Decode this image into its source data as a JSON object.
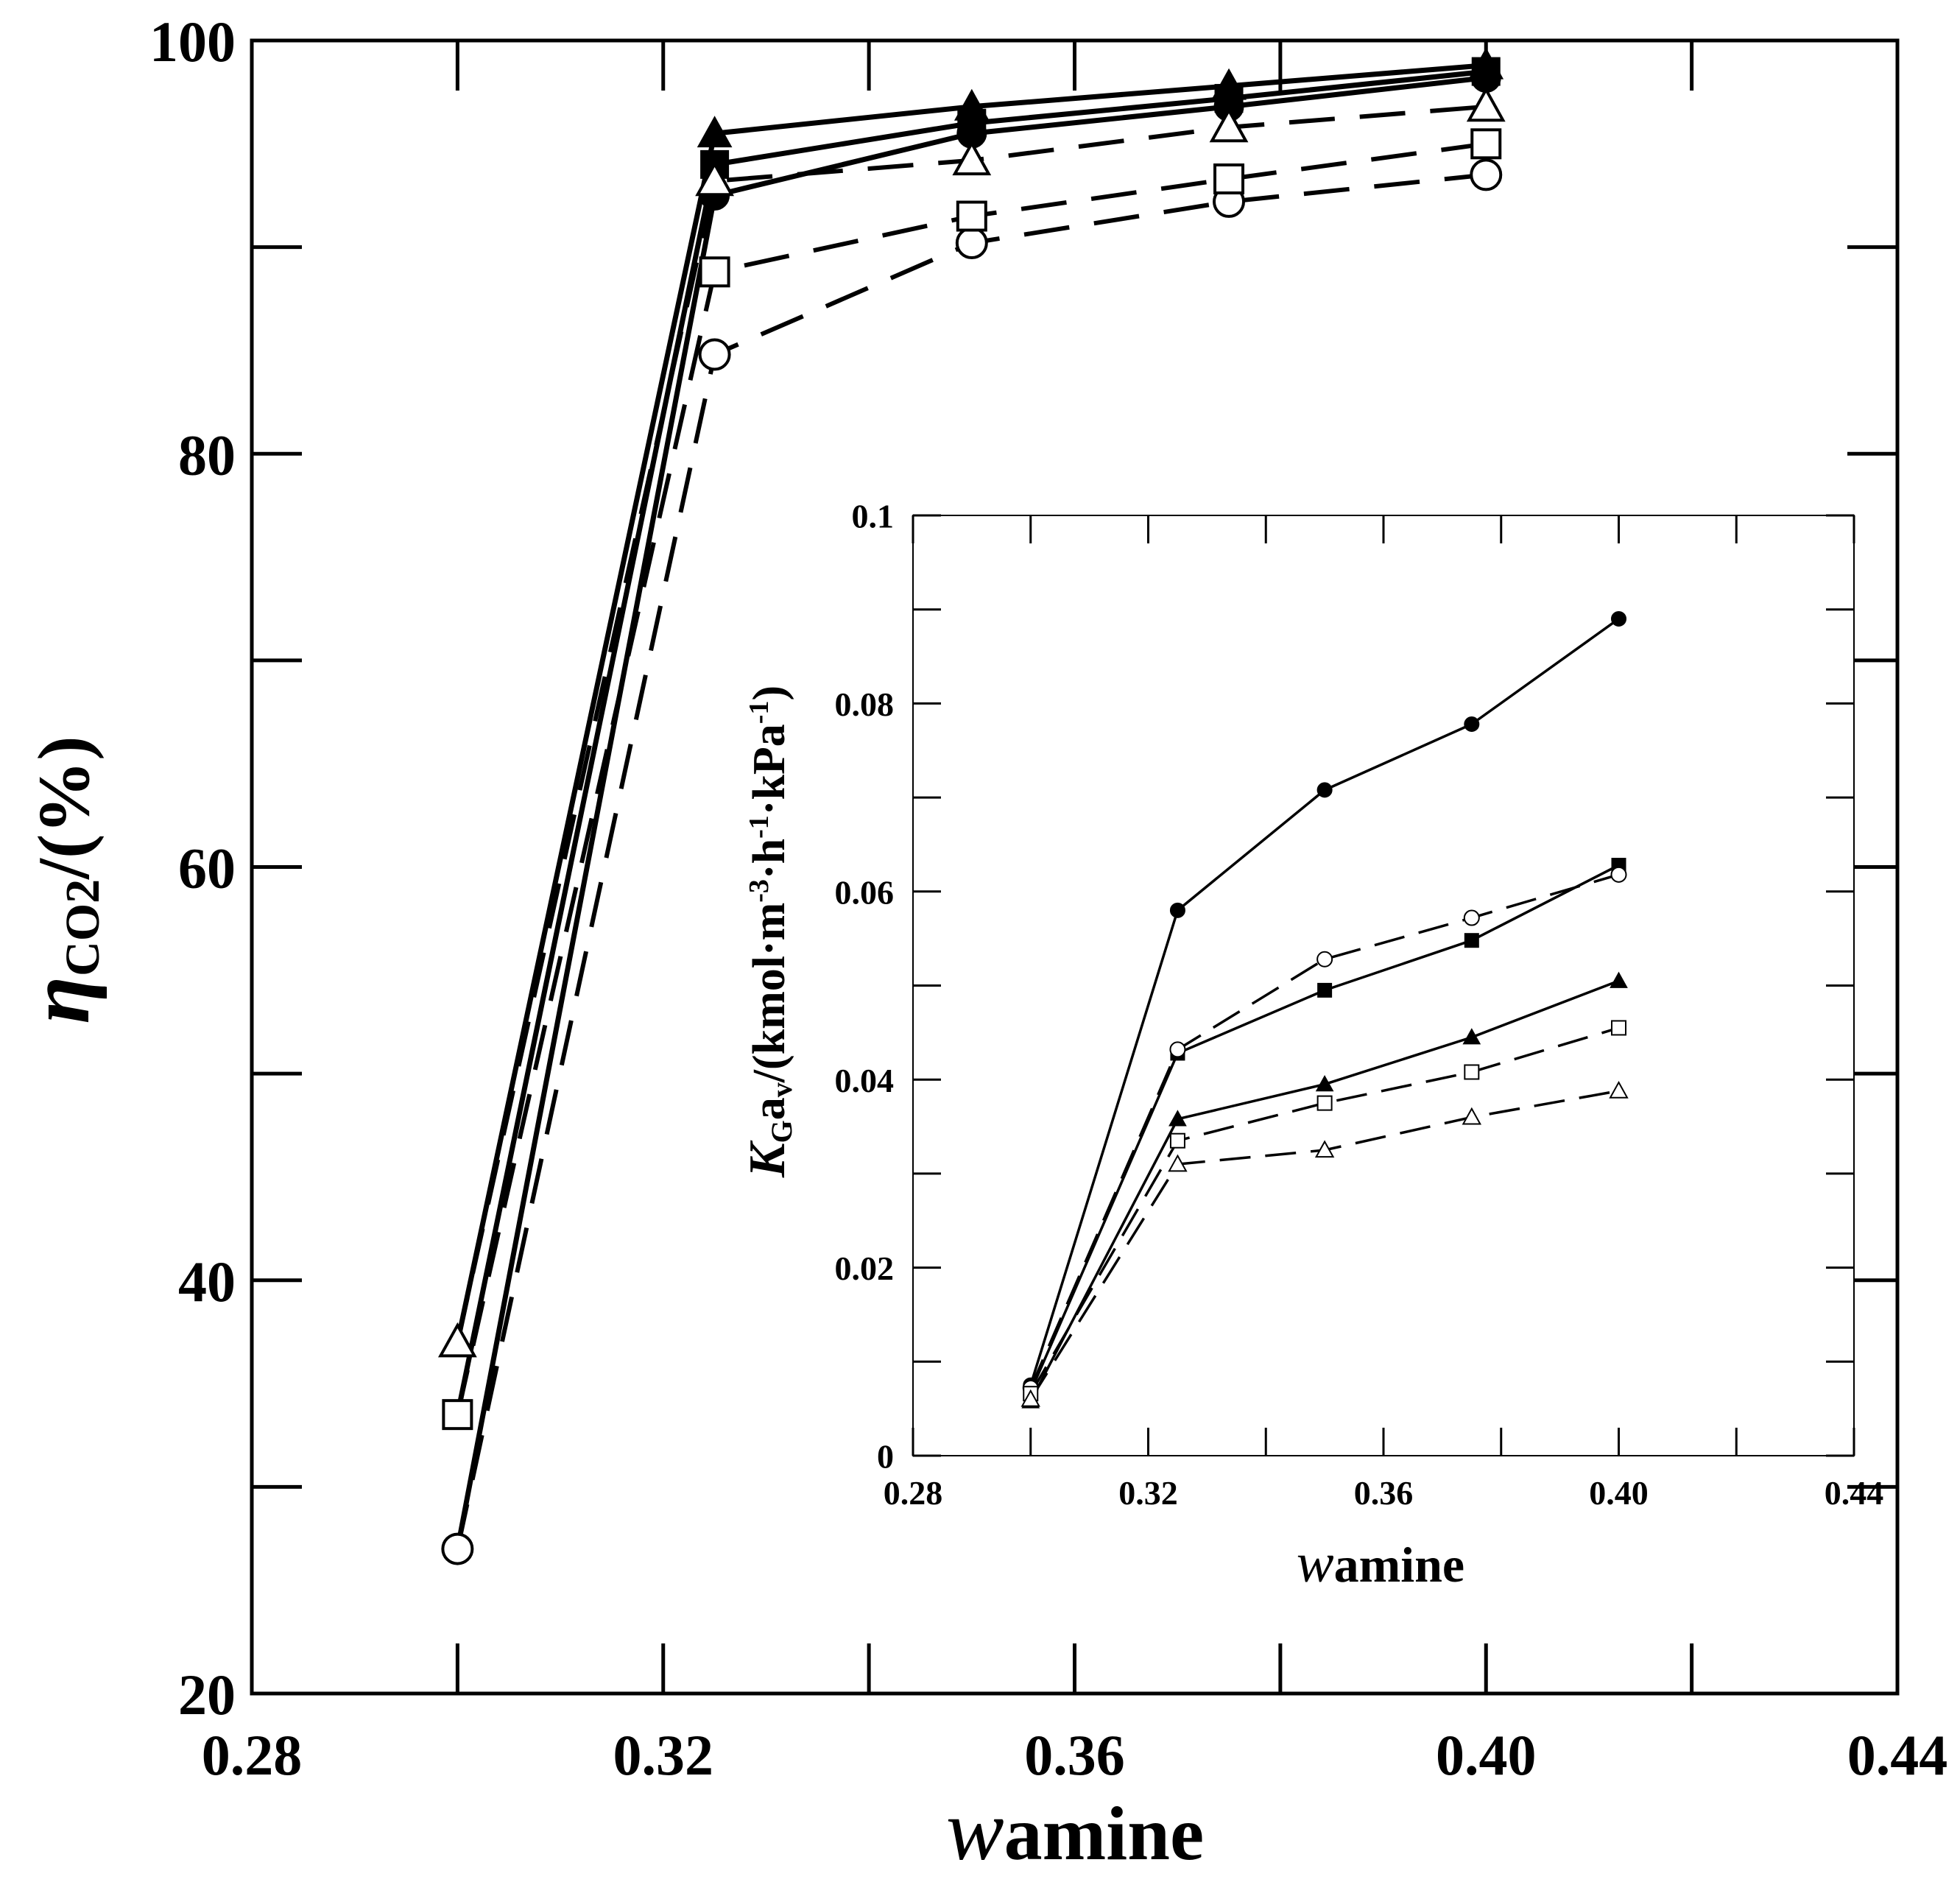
{
  "chart_data": [
    {
      "id": "main",
      "type": "line",
      "title": "",
      "xlabel": {
        "italic": "w",
        "sub": "amine"
      },
      "ylabel": {
        "italic": "η",
        "sub": "CO2",
        "suffix": "/(%)"
      },
      "xlim": [
        0.28,
        0.44
      ],
      "ylim": [
        20,
        100
      ],
      "xticks": [
        0.28,
        0.32,
        0.36,
        0.4,
        0.44
      ],
      "xtick_labels": [
        "0.28",
        "0.32",
        "0.36",
        "0.40",
        "0.44"
      ],
      "xminor": [
        0.3,
        0.34,
        0.38,
        0.42
      ],
      "yticks": [
        20,
        40,
        60,
        80,
        100
      ],
      "ytick_labels": [
        "20",
        "40",
        "60",
        "80",
        "100"
      ],
      "yminor": [
        30,
        50,
        70,
        90
      ],
      "series": [
        {
          "name": "filled-circle",
          "marker": "circle",
          "filled": true,
          "dashed": false,
          "x": [
            0.3,
            0.325,
            0.35,
            0.375,
            0.4
          ],
          "y": [
            27.0,
            92.5,
            95.5,
            96.8,
            98.2
          ]
        },
        {
          "name": "filled-square",
          "marker": "square",
          "filled": true,
          "dashed": false,
          "x": [
            0.3,
            0.325,
            0.35,
            0.375,
            0.4
          ],
          "y": [
            33.5,
            94.0,
            96.0,
            97.2,
            98.5
          ]
        },
        {
          "name": "filled-triangle",
          "marker": "triangle",
          "filled": true,
          "dashed": false,
          "x": [
            0.3,
            0.325,
            0.35,
            0.375,
            0.4
          ],
          "y": [
            37.0,
            95.5,
            96.8,
            97.8,
            98.8
          ]
        },
        {
          "name": "open-circle",
          "marker": "circle",
          "filled": false,
          "dashed": true,
          "x": [
            0.3,
            0.325,
            0.35,
            0.375,
            0.4
          ],
          "y": [
            27.0,
            84.8,
            90.2,
            92.2,
            93.5
          ]
        },
        {
          "name": "open-square",
          "marker": "square",
          "filled": false,
          "dashed": true,
          "x": [
            0.3,
            0.325,
            0.35,
            0.375,
            0.4
          ],
          "y": [
            33.5,
            88.8,
            91.5,
            93.3,
            95.0
          ]
        },
        {
          "name": "open-triangle",
          "marker": "triangle",
          "filled": false,
          "dashed": true,
          "x": [
            0.3,
            0.325,
            0.35,
            0.375,
            0.4
          ],
          "y": [
            37.0,
            93.2,
            94.2,
            95.8,
            96.8
          ]
        }
      ]
    },
    {
      "id": "inset",
      "type": "line",
      "title": "",
      "xlabel": {
        "italic": "w",
        "sub": "amine"
      },
      "ylabel": {
        "italic": "K",
        "sub": "G",
        "rest": "a",
        "sub2": "v",
        "prefix": "/(kmol·m",
        "sup1": "-3",
        "mid1": "·h",
        "sup2": "-1",
        "mid2": "·kPa",
        "sup3": "-1",
        "suffix": ")"
      },
      "xlim": [
        0.28,
        0.44
      ],
      "ylim": [
        0,
        0.1
      ],
      "xticks": [
        0.28,
        0.32,
        0.36,
        0.4,
        0.44
      ],
      "xtick_labels": [
        "0.28",
        "0.32",
        "0.36",
        "0.40",
        "0.44"
      ],
      "xminor": [
        0.3,
        0.34,
        0.38,
        0.42
      ],
      "yticks": [
        0,
        0.02,
        0.04,
        0.06,
        0.08,
        0.1
      ],
      "ytick_labels": [
        "0",
        "0.02",
        "0.04",
        "0.06",
        "0.08",
        "0.1"
      ],
      "yminor": [
        0.01,
        0.03,
        0.05,
        0.07,
        0.09
      ],
      "series": [
        {
          "name": "filled-circle",
          "marker": "circle",
          "filled": true,
          "dashed": false,
          "x": [
            0.3,
            0.325,
            0.35,
            0.375,
            0.4
          ],
          "y": [
            0.0075,
            0.058,
            0.0708,
            0.0778,
            0.089
          ]
        },
        {
          "name": "filled-square",
          "marker": "square",
          "filled": true,
          "dashed": false,
          "x": [
            0.3,
            0.325,
            0.35,
            0.375,
            0.4
          ],
          "y": [
            0.0068,
            0.0428,
            0.0495,
            0.0548,
            0.0628
          ]
        },
        {
          "name": "filled-triangle",
          "marker": "triangle",
          "filled": true,
          "dashed": false,
          "x": [
            0.3,
            0.325,
            0.35,
            0.375,
            0.4
          ],
          "y": [
            0.0058,
            0.0358,
            0.0395,
            0.0445,
            0.0505
          ]
        },
        {
          "name": "open-circle",
          "marker": "circle",
          "filled": false,
          "dashed": true,
          "x": [
            0.3,
            0.325,
            0.35,
            0.375,
            0.4
          ],
          "y": [
            0.0072,
            0.0432,
            0.0528,
            0.0572,
            0.0618
          ]
        },
        {
          "name": "open-square",
          "marker": "square",
          "filled": false,
          "dashed": true,
          "x": [
            0.3,
            0.325,
            0.35,
            0.375,
            0.4
          ],
          "y": [
            0.0066,
            0.0335,
            0.0375,
            0.0408,
            0.0455
          ]
        },
        {
          "name": "open-triangle",
          "marker": "triangle",
          "filled": false,
          "dashed": true,
          "x": [
            0.3,
            0.325,
            0.35,
            0.375,
            0.4
          ],
          "y": [
            0.006,
            0.031,
            0.0325,
            0.036,
            0.0388
          ]
        }
      ]
    }
  ]
}
